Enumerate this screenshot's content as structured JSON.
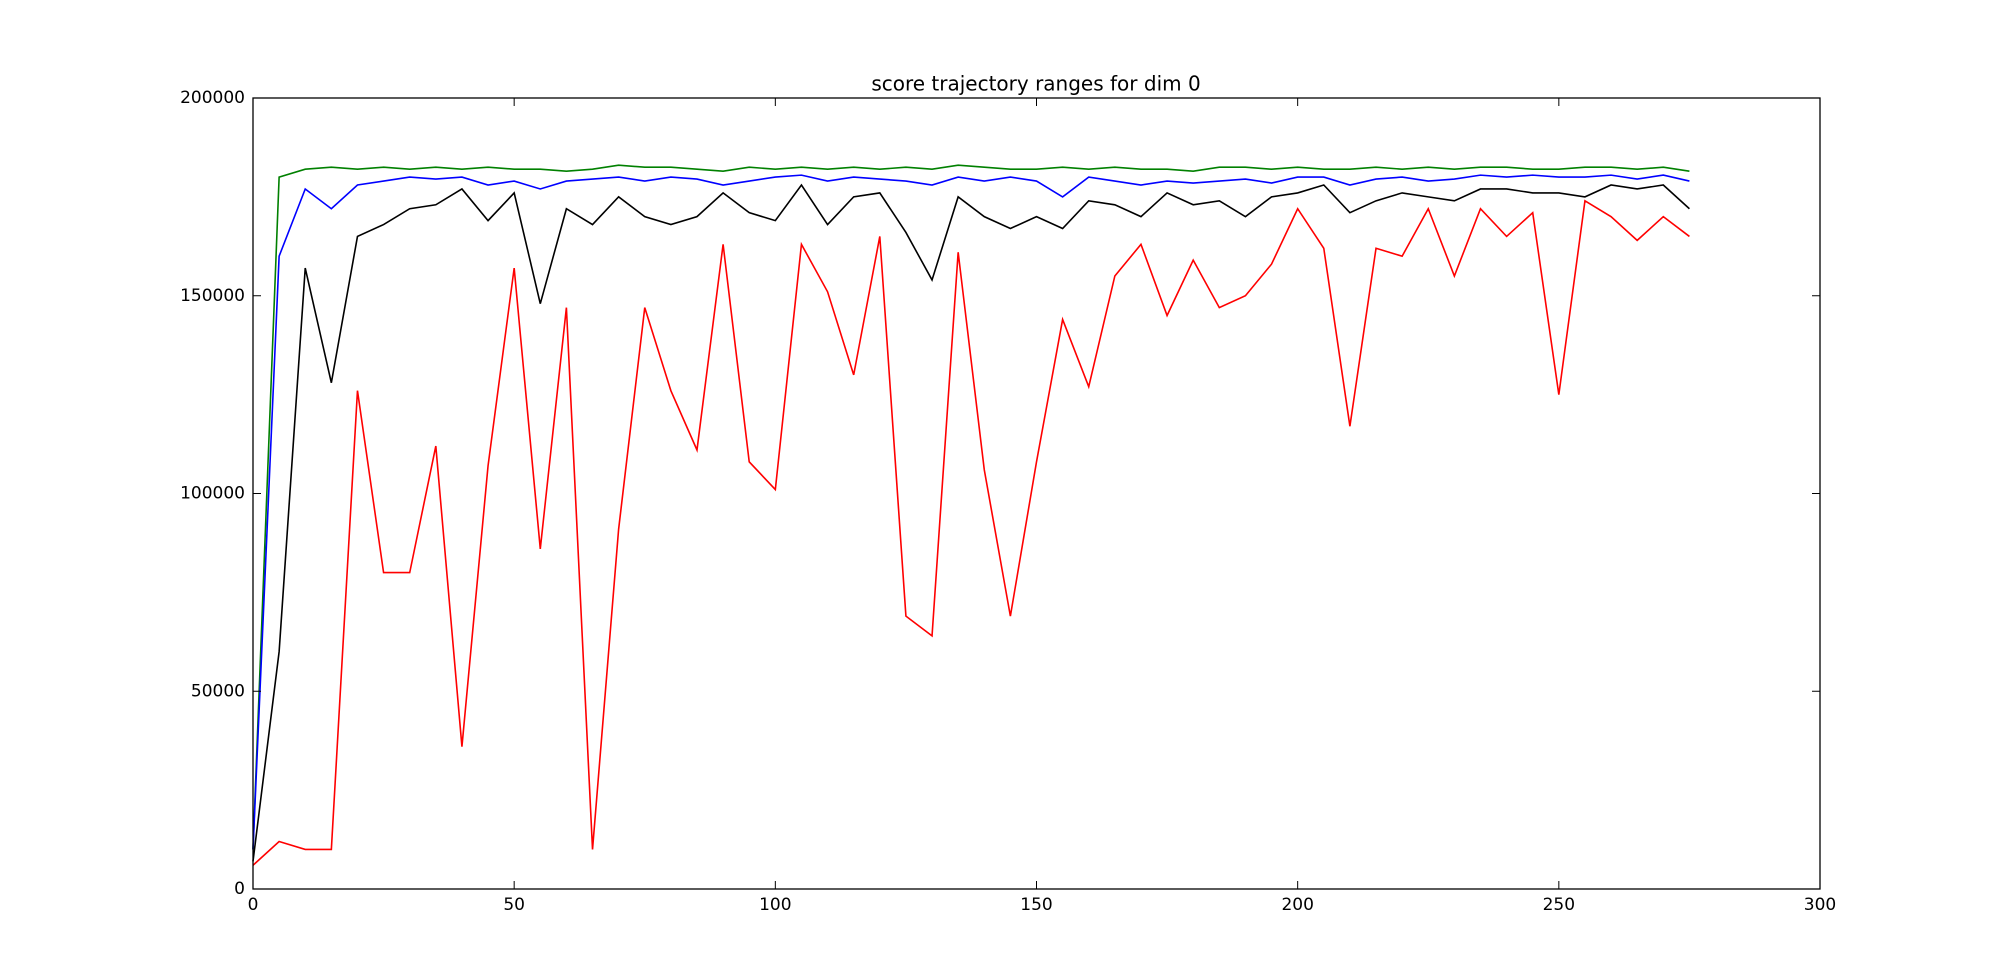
{
  "chart_data": {
    "type": "line",
    "title": "score trajectory ranges for dim 0",
    "x": [
      0,
      5,
      10,
      15,
      20,
      25,
      30,
      35,
      40,
      45,
      50,
      55,
      60,
      65,
      70,
      75,
      80,
      85,
      90,
      95,
      100,
      105,
      110,
      115,
      120,
      125,
      130,
      135,
      140,
      145,
      150,
      155,
      160,
      165,
      170,
      175,
      180,
      185,
      190,
      195,
      200,
      205,
      210,
      215,
      220,
      225,
      230,
      235,
      240,
      245,
      250,
      255,
      260,
      265,
      270,
      275
    ],
    "series": [
      {
        "color": "#008000",
        "values": [
          10000,
          180000,
          182000,
          182500,
          182000,
          182500,
          182000,
          182500,
          182000,
          182500,
          182000,
          182000,
          181500,
          182000,
          183000,
          182500,
          182500,
          182000,
          181500,
          182500,
          182000,
          182500,
          182000,
          182500,
          182000,
          182500,
          182000,
          183000,
          182500,
          182000,
          182000,
          182500,
          182000,
          182500,
          182000,
          182000,
          181500,
          182500,
          182500,
          182000,
          182500,
          182000,
          182000,
          182500,
          182000,
          182500,
          182000,
          182500,
          182500,
          182000,
          182000,
          182500,
          182500,
          182000,
          182500,
          181500
        ]
      },
      {
        "color": "#0000ff",
        "values": [
          10000,
          160000,
          177000,
          172000,
          178000,
          179000,
          180000,
          179500,
          180000,
          178000,
          179000,
          177000,
          179000,
          179500,
          180000,
          179000,
          180000,
          179500,
          178000,
          179000,
          180000,
          180500,
          179000,
          180000,
          179500,
          179000,
          178000,
          180000,
          179000,
          180000,
          179000,
          175000,
          180000,
          179000,
          178000,
          179000,
          178500,
          179000,
          179500,
          178500,
          180000,
          180000,
          178000,
          179500,
          180000,
          179000,
          179500,
          180500,
          180000,
          180500,
          180000,
          180000,
          180500,
          179500,
          180500,
          179000
        ]
      },
      {
        "color": "#000000",
        "values": [
          7000,
          60000,
          157000,
          128000,
          165000,
          168000,
          172000,
          173000,
          177000,
          169000,
          176000,
          148000,
          172000,
          168000,
          175000,
          170000,
          168000,
          170000,
          176000,
          171000,
          169000,
          178000,
          168000,
          175000,
          176000,
          166000,
          154000,
          175000,
          170000,
          167000,
          170000,
          167000,
          174000,
          173000,
          170000,
          176000,
          173000,
          174000,
          170000,
          175000,
          176000,
          178000,
          171000,
          174000,
          176000,
          175000,
          174000,
          177000,
          177000,
          176000,
          176000,
          175000,
          178000,
          177000,
          178000,
          172000
        ]
      },
      {
        "color": "#ff0000",
        "values": [
          6000,
          12000,
          10000,
          10000,
          126000,
          80000,
          80000,
          112000,
          36000,
          107000,
          157000,
          86000,
          147000,
          10000,
          91000,
          147000,
          126000,
          111000,
          163000,
          108000,
          101000,
          163000,
          151000,
          130000,
          165000,
          69000,
          64000,
          161000,
          106000,
          69000,
          108000,
          144000,
          127000,
          155000,
          163000,
          145000,
          159000,
          147000,
          150000,
          158000,
          172000,
          162000,
          117000,
          162000,
          160000,
          172000,
          155000,
          172000,
          165000,
          171000,
          125000,
          174000,
          170000,
          164000,
          170000,
          165000
        ]
      }
    ],
    "xlim": [
      0,
      300
    ],
    "xticks": [
      0,
      50,
      100,
      150,
      200,
      250,
      300
    ],
    "ylim": [
      0,
      200000
    ],
    "yticks": [
      0,
      50000,
      100000,
      150000,
      200000
    ]
  }
}
